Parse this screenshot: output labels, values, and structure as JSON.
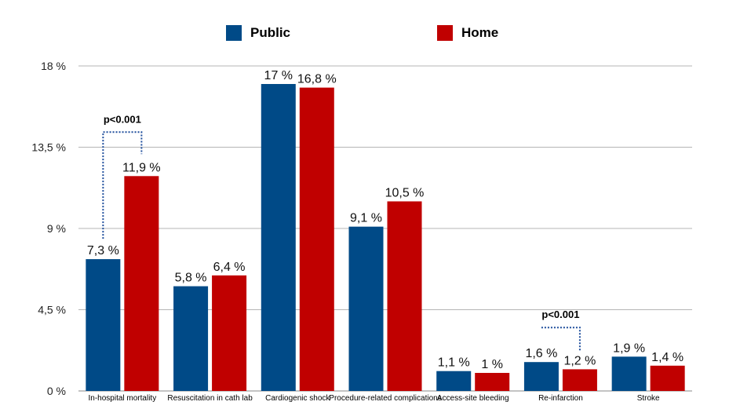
{
  "chart_data": {
    "type": "bar",
    "categories": [
      "In-hospital mortality",
      "Resuscitation in cath lab",
      "Cardiogenic shock",
      "Procedure-related complications",
      "Access-site bleeding",
      "Re-infarction",
      "Stroke"
    ],
    "series": [
      {
        "name": "Public",
        "color": "#004a87",
        "values": [
          7.3,
          5.8,
          17,
          9.1,
          1.1,
          1.6,
          1.9
        ],
        "labels": [
          "7,3 %",
          "5,8 %",
          "17 %",
          "9,1 %",
          "1,1 %",
          "1,6 %",
          "1,9 %"
        ]
      },
      {
        "name": "Home",
        "color": "#c00000",
        "values": [
          11.9,
          6.4,
          16.8,
          10.5,
          1,
          1.2,
          1.4
        ],
        "labels": [
          "11,9 %",
          "6,4 %",
          "16,8 %",
          "10,5 %",
          "1 %",
          "1,2 %",
          "1,4 %"
        ]
      }
    ],
    "yticks": [
      0,
      4.5,
      9,
      13.5,
      18
    ],
    "ytick_labels": [
      "0 %",
      "4,5 %",
      "9 %",
      "13,5 %",
      "18 %"
    ],
    "ylim": [
      0,
      18
    ],
    "grid": true,
    "legend_position": "top",
    "annotations": [
      {
        "text": "p<0.001",
        "category_index": 0
      },
      {
        "text": "p<0.001",
        "category_index": 5
      }
    ],
    "title": "",
    "xlabel": "",
    "ylabel": ""
  }
}
